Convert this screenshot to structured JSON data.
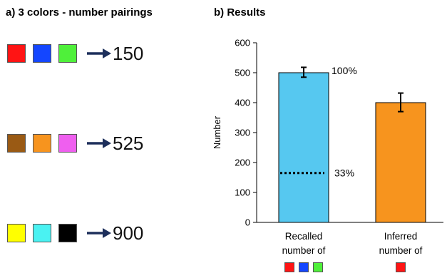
{
  "panel_a": {
    "title": "a) 3 colors - number pairings",
    "pairings": [
      {
        "colors": [
          "#ff1414",
          "#1446ff",
          "#4ff03a"
        ],
        "number": "150"
      },
      {
        "colors": [
          "#9a5a14",
          "#f7941e",
          "#ef5fef"
        ],
        "number": "525"
      },
      {
        "colors": [
          "#ffff00",
          "#4af2f2",
          "#000000"
        ],
        "number": "900"
      }
    ],
    "arrow_color": "#1d2f5b"
  },
  "panel_b": {
    "title": "b) Results"
  },
  "chart_data": {
    "type": "bar",
    "title": "b) Results",
    "ylabel": "Number",
    "xlabel": "",
    "ylim": [
      0,
      600
    ],
    "yticks": [
      0,
      100,
      200,
      300,
      400,
      500,
      600
    ],
    "grid": false,
    "categories": [
      "Recalled number of",
      "Inferred number of"
    ],
    "category_swatches": [
      [
        "#ff1414",
        "#1446ff",
        "#4ff03a"
      ],
      [
        "#ff1414"
      ]
    ],
    "values": [
      500,
      400
    ],
    "error_low": [
      485,
      370
    ],
    "error_high": [
      518,
      432
    ],
    "bar_colors": [
      "#56c8f0",
      "#f7941e"
    ],
    "bar_labels": [
      "100%",
      ""
    ],
    "reference_line": {
      "category_index": 0,
      "value": 165,
      "label": "33%"
    }
  }
}
